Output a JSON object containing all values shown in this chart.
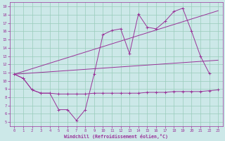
{
  "xlabel": "Windchill (Refroidissement éolien,°C)",
  "background_color": "#cce8e8",
  "grid_color": "#99ccbb",
  "line_color": "#993399",
  "x_ticks": [
    0,
    1,
    2,
    3,
    4,
    5,
    6,
    7,
    8,
    9,
    10,
    11,
    12,
    13,
    14,
    15,
    16,
    17,
    18,
    19,
    20,
    21,
    22,
    23
  ],
  "y_ticks": [
    5,
    6,
    7,
    8,
    9,
    10,
    11,
    12,
    13,
    14,
    15,
    16,
    17,
    18,
    19
  ],
  "xlim": [
    -0.5,
    23.5
  ],
  "ylim": [
    4.5,
    19.5
  ],
  "s1x": [
    0,
    1,
    2,
    3,
    4,
    5,
    6,
    7,
    8,
    9,
    10,
    11,
    12,
    13,
    14,
    15,
    16,
    17,
    18,
    19,
    20,
    21,
    22
  ],
  "s1y": [
    10.8,
    10.3,
    8.9,
    8.5,
    8.5,
    6.5,
    6.5,
    5.2,
    6.5,
    10.8,
    15.6,
    16.1,
    16.3,
    13.3,
    18.1,
    16.5,
    16.3,
    17.2,
    18.4,
    18.8,
    16.0,
    13.0,
    10.9
  ],
  "s2x": [
    0,
    1,
    2,
    3,
    4,
    5,
    6,
    7,
    8,
    9,
    10,
    11,
    12,
    13,
    14,
    15,
    16,
    17,
    18,
    19,
    20,
    21,
    22,
    23
  ],
  "s2y": [
    10.8,
    10.3,
    8.9,
    8.5,
    8.5,
    8.4,
    8.4,
    8.4,
    8.4,
    8.5,
    8.5,
    8.5,
    8.5,
    8.5,
    8.5,
    8.6,
    8.6,
    8.6,
    8.7,
    8.7,
    8.7,
    8.7,
    8.8,
    8.9
  ],
  "s3x": [
    0,
    23
  ],
  "s3y": [
    10.8,
    18.5
  ],
  "s4x": [
    0,
    23
  ],
  "s4y": [
    10.8,
    12.5
  ],
  "figw": 3.2,
  "figh": 2.0,
  "dpi": 100
}
